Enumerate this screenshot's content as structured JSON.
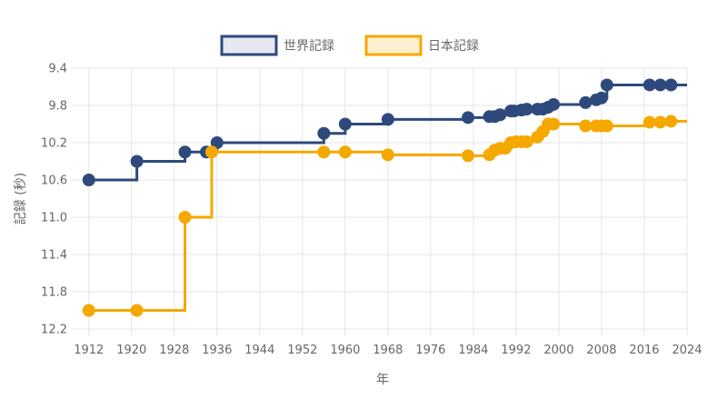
{
  "chart_data": {
    "type": "line",
    "step": true,
    "xlabel": "年",
    "ylabel": "記録 (秒)",
    "xlim": [
      1910,
      2024
    ],
    "ylim": [
      12.2,
      9.4
    ],
    "y_reversed": true,
    "xticks": [
      1912,
      1920,
      1928,
      1936,
      1944,
      1952,
      1960,
      1968,
      1976,
      1984,
      1992,
      2000,
      2008,
      2016,
      2024
    ],
    "yticks": [
      9.4,
      9.8,
      10.2,
      10.6,
      11.0,
      11.4,
      11.8,
      12.2
    ],
    "ytick_labels": [
      "9.4",
      "9.8",
      "10.2",
      "10.6",
      "11.0",
      "11.4",
      "11.8",
      "12.2"
    ],
    "grid": true,
    "legend_position": "top",
    "series": [
      {
        "name": "世界記録",
        "color": "#2e4a7d",
        "fill": "#e6e8f0",
        "x": [
          1912,
          1921,
          1930,
          1934,
          1936,
          1956,
          1960,
          1968,
          1983,
          1987,
          1988,
          1989,
          1991,
          1991.6,
          1993,
          1994,
          1996,
          1997,
          1998,
          1999,
          2005,
          2007,
          2008,
          2009,
          2017,
          2019,
          2021
        ],
        "y": [
          10.6,
          10.4,
          10.3,
          10.3,
          10.2,
          10.1,
          10.0,
          9.95,
          9.93,
          9.92,
          9.92,
          9.9,
          9.86,
          9.86,
          9.85,
          9.84,
          9.84,
          9.84,
          9.82,
          9.79,
          9.77,
          9.74,
          9.72,
          9.58,
          9.58,
          9.58,
          9.58
        ],
        "end_x": 2024
      },
      {
        "name": "日本記録",
        "color": "#f5a800",
        "fill": "#fdf0d0",
        "x": [
          1912,
          1921,
          1930,
          1935,
          1956,
          1960,
          1968,
          1983,
          1987,
          1988,
          1989,
          1990,
          1991,
          1992,
          1993,
          1994,
          1996,
          1997,
          1998,
          1999,
          2005,
          2007,
          2008,
          2009,
          2017,
          2019,
          2021
        ],
        "y": [
          12.0,
          12.0,
          11.0,
          10.3,
          10.3,
          10.3,
          10.33,
          10.34,
          10.33,
          10.28,
          10.26,
          10.26,
          10.2,
          10.19,
          10.19,
          10.19,
          10.14,
          10.08,
          10.0,
          10.0,
          10.02,
          10.02,
          10.02,
          10.02,
          9.98,
          9.98,
          9.97
        ],
        "end_x": 2024
      }
    ]
  }
}
